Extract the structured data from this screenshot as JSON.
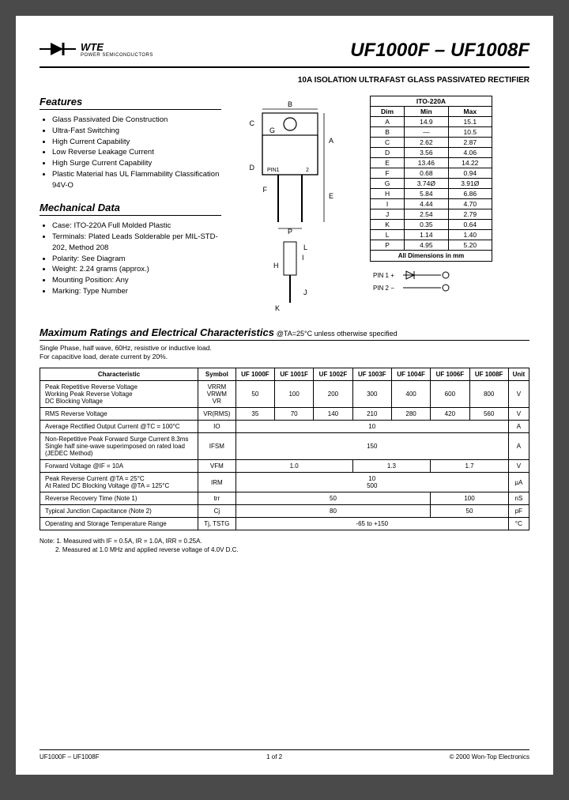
{
  "logo": {
    "name": "WTE",
    "sub": "POWER SEMICONDUCTORS"
  },
  "title": "UF1000F – UF1008F",
  "subtitle": "10A ISOLATION ULTRAFAST GLASS PASSIVATED RECTIFIER",
  "features": {
    "heading": "Features",
    "items": [
      "Glass Passivated Die Construction",
      "Ultra-Fast Switching",
      "High Current Capability",
      "Low Reverse Leakage Current",
      "High Surge Current Capability",
      "Plastic Material has UL Flammability Classification 94V-O"
    ]
  },
  "mechanical": {
    "heading": "Mechanical Data",
    "items": [
      "Case: ITO-220A Full Molded Plastic",
      "Terminals: Plated Leads Solderable per MIL-STD-202, Method 208",
      "Polarity: See Diagram",
      "Weight: 2.24 grams (approx.)",
      "Mounting Position: Any",
      "Marking: Type Number"
    ]
  },
  "dimTable": {
    "title": "ITO-220A",
    "header": [
      "Dim",
      "Min",
      "Max"
    ],
    "rows": [
      [
        "A",
        "14.9",
        "15.1"
      ],
      [
        "B",
        "—",
        "10.5"
      ],
      [
        "C",
        "2.62",
        "2.87"
      ],
      [
        "D",
        "3.56",
        "4.06"
      ],
      [
        "E",
        "13.46",
        "14.22"
      ],
      [
        "F",
        "0.68",
        "0.94"
      ],
      [
        "G",
        "3.74Ø",
        "3.91Ø"
      ],
      [
        "H",
        "5.84",
        "6.86"
      ],
      [
        "I",
        "4.44",
        "4.70"
      ],
      [
        "J",
        "2.54",
        "2.79"
      ],
      [
        "K",
        "0.35",
        "0.64"
      ],
      [
        "L",
        "1.14",
        "1.40"
      ],
      [
        "P",
        "4.95",
        "5.20"
      ]
    ],
    "footer": "All Dimensions in mm"
  },
  "pinLabels": {
    "pin1": "PIN 1 +",
    "pin2": "PIN 2 −"
  },
  "maxRatings": {
    "heading": "Maximum Ratings and Electrical Characteristics",
    "cond": "@TA=25°C unless otherwise specified",
    "sub1": "Single Phase, half wave, 60Hz, resistive or inductive load.",
    "sub2": "For capacitive load, derate current by 20%.",
    "header": [
      "Characteristic",
      "Symbol",
      "UF 1000F",
      "UF 1001F",
      "UF 1002F",
      "UF 1003F",
      "UF 1004F",
      "UF 1006F",
      "UF 1008F",
      "Unit"
    ],
    "rows": [
      {
        "char": "Peak Repetitive Reverse Voltage\nWorking Peak Reverse Voltage\nDC Blocking Voltage",
        "sym": "VRRM\nVRWM\nVR",
        "vals": [
          "50",
          "100",
          "200",
          "300",
          "400",
          "600",
          "800"
        ],
        "unit": "V"
      },
      {
        "char": "RMS Reverse Voltage",
        "sym": "VR(RMS)",
        "vals": [
          "35",
          "70",
          "140",
          "210",
          "280",
          "420",
          "560"
        ],
        "unit": "V"
      },
      {
        "char": "Average Rectified Output Current      @TC = 100°C",
        "sym": "IO",
        "span": "10",
        "unit": "A"
      },
      {
        "char": "Non-Repetitive Peak Forward Surge Current 8.3ms\nSingle half sine-wave superimposed on rated load\n(JEDEC Method)",
        "sym": "IFSM",
        "span": "150",
        "unit": "A"
      },
      {
        "char": "Forward Voltage                @IF = 10A",
        "sym": "VFM",
        "grp": [
          "1.0",
          "1.3",
          "1.7"
        ],
        "grpspan": [
          3,
          2,
          2
        ],
        "unit": "V"
      },
      {
        "char": "Peak Reverse Current           @TA = 25°C\nAt Rated DC Blocking Voltage   @TA = 125°C",
        "sym": "IRM",
        "span": "10\n500",
        "unit": "µA"
      },
      {
        "char": "Reverse Recovery Time (Note 1)",
        "sym": "trr",
        "grp": [
          "50",
          "100"
        ],
        "grpspan": [
          5,
          2
        ],
        "unit": "nS"
      },
      {
        "char": "Typical Junction Capacitance (Note 2)",
        "sym": "Cj",
        "grp": [
          "80",
          "50"
        ],
        "grpspan": [
          5,
          2
        ],
        "unit": "pF"
      },
      {
        "char": "Operating and Storage Temperature Range",
        "sym": "Tj, TSTG",
        "span": "-65 to +150",
        "unit": "°C"
      }
    ]
  },
  "notes": {
    "n1": "Note: 1. Measured with IF = 0.5A, IR = 1.0A, IRR = 0.25A.",
    "n2": "         2. Measured at 1.0 MHz and applied reverse voltage of 4.0V D.C."
  },
  "footer": {
    "left": "UF1000F – UF1008F",
    "center": "1 of 2",
    "right": "© 2000 Won-Top Electronics"
  }
}
